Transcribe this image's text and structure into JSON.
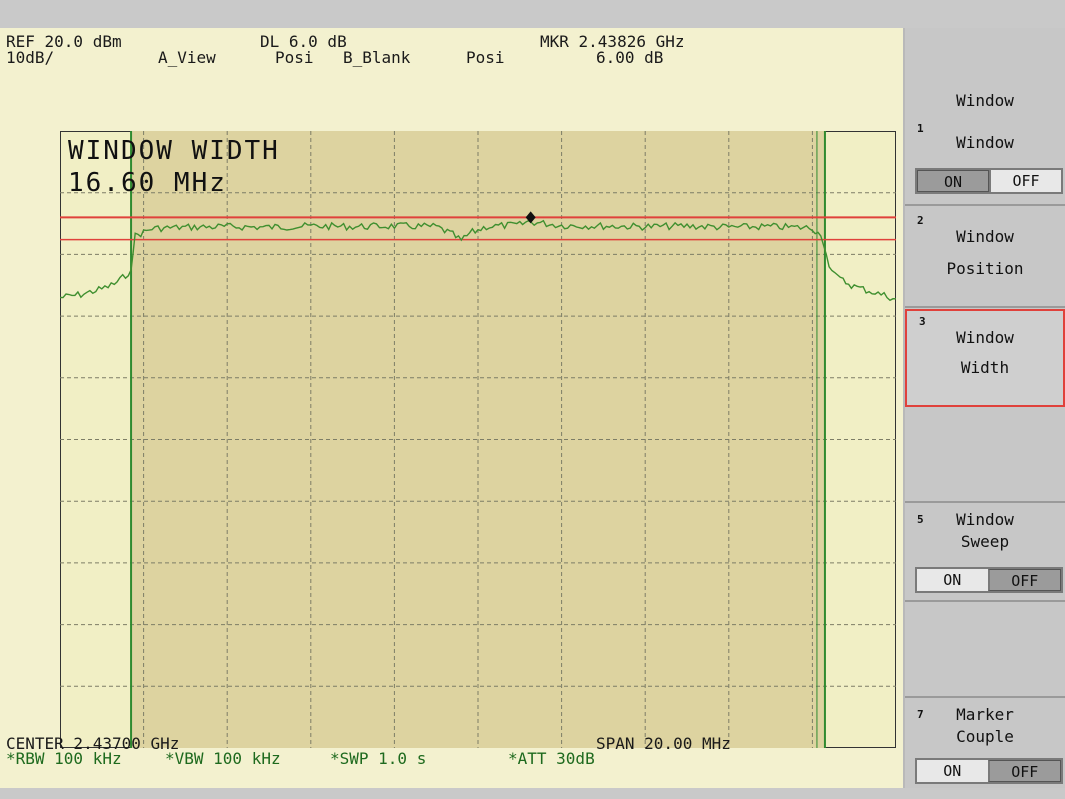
{
  "header": {
    "ref": "REF 20.0 dBm",
    "scale": "10dB/",
    "dl": "DL 6.0 dB",
    "a_view": "A_View",
    "posi_a": "Posi",
    "b_blank": "B_Blank",
    "posi_b": "Posi",
    "mkr_freq": "MKR 2.43826 GHz",
    "mkr_level": "6.00 dB"
  },
  "overlay": {
    "line1": "WINDOW WIDTH",
    "line2": "16.60 MHz"
  },
  "footer": {
    "center": "CENTER 2.43700 GHz",
    "span": "SPAN 20.00 MHz",
    "rbw": "*RBW 100 kHz",
    "vbw": "*VBW 100 kHz",
    "swp": "*SWP 1.0 s",
    "att": "*ATT 30dB"
  },
  "softkeys": {
    "title": "Window",
    "k1": {
      "num": "1",
      "label": "Window",
      "on": "ON",
      "off": "OFF",
      "state": "ON"
    },
    "k2": {
      "num": "2",
      "label1": "Window",
      "label2": "Position"
    },
    "k3": {
      "num": "3",
      "label1": "Window",
      "label2": "Width"
    },
    "k5": {
      "num": "5",
      "label1": "Window",
      "label2": "Sweep",
      "on": "ON",
      "off": "OFF",
      "state": "OFF"
    },
    "k7": {
      "num": "7",
      "label1": "Marker",
      "label2": "Couple",
      "on": "ON",
      "off": "OFF",
      "state": "OFF"
    }
  },
  "chart_data": {
    "type": "line",
    "x_unit": "GHz",
    "x_range": [
      2.427,
      2.447
    ],
    "y_unit": "dBm",
    "y_range": [
      -80,
      20
    ],
    "grid": true,
    "window": {
      "start": 2.4287,
      "end": 2.4453
    },
    "upper_limit": 6.0,
    "lower_limit": 2.4,
    "marker": {
      "x": 2.43826,
      "y": 6.0
    },
    "trace_color": "#3f8f2f",
    "limit_color": "#e0413b",
    "series": [
      {
        "points": [
          [
            2.427,
            -7.0
          ],
          [
            2.4275,
            -6.5
          ],
          [
            2.428,
            -5.6
          ],
          [
            2.4283,
            -4.8
          ],
          [
            2.4285,
            -3.8
          ],
          [
            2.4287,
            -2.5
          ],
          [
            2.4288,
            3.0
          ],
          [
            2.4292,
            4.2
          ],
          [
            2.43,
            4.4
          ],
          [
            2.431,
            4.5
          ],
          [
            2.432,
            4.4
          ],
          [
            2.433,
            4.6
          ],
          [
            2.434,
            4.5
          ],
          [
            2.435,
            4.6
          ],
          [
            2.436,
            4.5
          ],
          [
            2.4364,
            3.2
          ],
          [
            2.4366,
            2.2
          ],
          [
            2.4368,
            3.4
          ],
          [
            2.4372,
            4.5
          ],
          [
            2.438,
            4.8
          ],
          [
            2.4382,
            5.3
          ],
          [
            2.439,
            4.7
          ],
          [
            2.44,
            4.6
          ],
          [
            2.441,
            4.5
          ],
          [
            2.442,
            4.6
          ],
          [
            2.443,
            4.4
          ],
          [
            2.444,
            4.5
          ],
          [
            2.445,
            4.3
          ],
          [
            2.4452,
            3.0
          ],
          [
            2.4454,
            -1.5
          ],
          [
            2.4456,
            -3.8
          ],
          [
            2.446,
            -5.2
          ],
          [
            2.4465,
            -6.2
          ],
          [
            2.447,
            -7.2
          ]
        ]
      }
    ]
  }
}
